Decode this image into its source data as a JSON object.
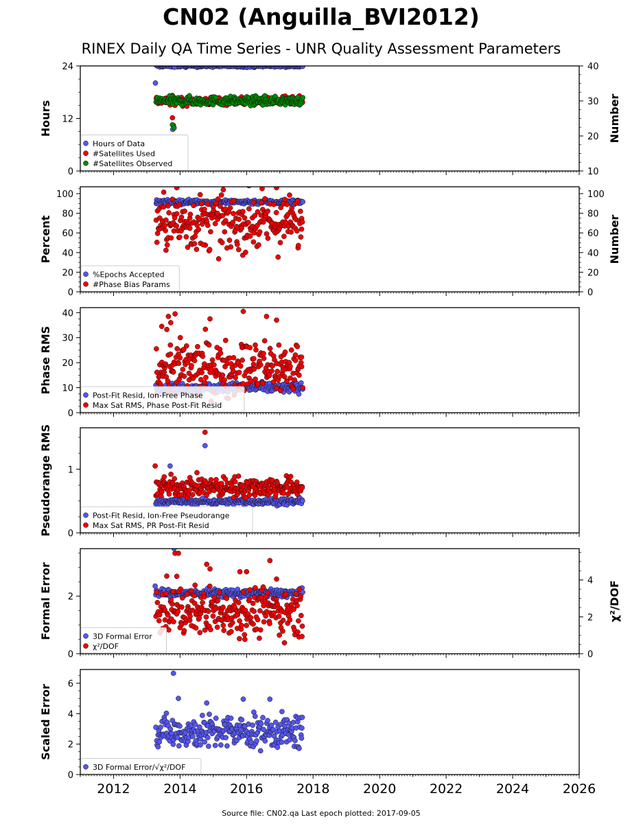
{
  "title": "CN02 (Anguilla_BVI2012)",
  "subtitle": "RINEX Daily QA Time Series - UNR Quality Assessment Parameters",
  "footer": "Source file: CN02.qa Last epoch plotted: 2017-09-05",
  "colors": {
    "blue": "#5555ee",
    "red": "#ee0000",
    "green": "#008800",
    "edge": "#111111"
  },
  "chart_data": {
    "type": "scatter",
    "xlim": [
      2011.0,
      2026.0
    ],
    "x_ticks": [
      2012,
      2014,
      2016,
      2018,
      2020,
      2022,
      2024,
      2026
    ],
    "x_tick_labels": [
      "2012",
      "2014",
      "2016",
      "2018",
      "2020",
      "2022",
      "2024",
      "2026"
    ],
    "panels": [
      {
        "ylabel": "Hours",
        "ylim": [
          0,
          24
        ],
        "yticks": [
          0,
          12,
          24
        ],
        "ytick_labels": [
          "0",
          "12",
          "24"
        ],
        "right_ylabel": "Number",
        "right_ylim": [
          10,
          40
        ],
        "right_yticks": [
          10,
          20,
          30,
          40
        ],
        "right_ytick_labels": [
          "10",
          "20",
          "30",
          "40"
        ],
        "series": [
          {
            "name": "Hours of Data",
            "color": "blue",
            "axis": "left",
            "x_range": [
              2013.28,
              2017.68
            ],
            "base": 24.0,
            "spread": 0.15,
            "outliers": [
              [
                2013.26,
                20.1
              ],
              [
                2013.78,
                9.5
              ],
              [
                2013.83,
                23.7
              ]
            ]
          },
          {
            "name": "#Satellites Used",
            "color": "red",
            "axis": "right",
            "x_range": [
              2013.28,
              2017.68
            ],
            "base": 30.0,
            "spread": 0.6,
            "outliers": [
              [
                2013.77,
                25.2
              ],
              [
                2013.8,
                23.0
              ]
            ]
          },
          {
            "name": "#Satellites Observed",
            "color": "green",
            "axis": "right",
            "x_range": [
              2013.28,
              2017.68
            ],
            "base": 30.0,
            "spread": 0.6,
            "outliers": [
              [
                2013.77,
                23.2
              ],
              [
                2013.82,
                22.3
              ]
            ]
          }
        ]
      },
      {
        "ylabel": "Percent",
        "ylim": [
          0,
          107
        ],
        "yticks": [
          0,
          20,
          40,
          60,
          80,
          100
        ],
        "ytick_labels": [
          "0",
          "20",
          "40",
          "60",
          "80",
          "100"
        ],
        "right_ylabel": "Number",
        "right_ylim": [
          0,
          107
        ],
        "right_yticks": [
          0,
          20,
          40,
          60,
          80,
          100
        ],
        "right_ytick_labels": [
          "0",
          "20",
          "40",
          "60",
          "80",
          "100"
        ],
        "series": [
          {
            "name": "%Epochs Accepted",
            "color": "blue",
            "axis": "left",
            "x_range": [
              2013.28,
              2017.68
            ],
            "base": 91.5,
            "spread": 1.2,
            "outliers": []
          },
          {
            "name": "#Phase Bias Params",
            "color": "red",
            "axis": "right",
            "x_range": [
              2013.28,
              2017.68
            ],
            "base": 70.0,
            "spread": 14.0,
            "outliers": [
              [
                2013.9,
                106
              ],
              [
                2015.3,
                104
              ],
              [
                2016.9,
                106
              ],
              [
                2014.7,
                48
              ]
            ]
          }
        ]
      },
      {
        "ylabel": "Phase RMS",
        "ylim": [
          0,
          42
        ],
        "yticks": [
          0,
          10,
          20,
          30,
          40
        ],
        "ytick_labels": [
          "0",
          "10",
          "20",
          "30",
          "40"
        ],
        "series": [
          {
            "name": "Post-Fit Resid, Ion-Free Phase",
            "color": "blue",
            "axis": "left",
            "x_range": [
              2013.28,
              2017.68
            ],
            "base": 10.0,
            "spread": 1.0,
            "outliers": []
          },
          {
            "name": "Max Sat RMS, Phase Post-Fit Resid",
            "color": "red",
            "axis": "left",
            "x_range": [
              2013.28,
              2017.68
            ],
            "base": 18.0,
            "spread": 5.5,
            "outliers": [
              [
                2013.65,
                38.5
              ],
              [
                2013.72,
                36.0
              ],
              [
                2013.85,
                39.5
              ],
              [
                2014.9,
                37.5
              ],
              [
                2015.9,
                40.5
              ],
              [
                2016.6,
                38.5
              ],
              [
                2016.9,
                37.0
              ],
              [
                2013.45,
                34.5
              ]
            ]
          }
        ]
      },
      {
        "ylabel": "Pseudorange RMS",
        "ylim": [
          0,
          1.65
        ],
        "yticks": [
          0,
          1
        ],
        "ytick_labels": [
          "0",
          "1"
        ],
        "series": [
          {
            "name": "Post-Fit Resid, Ion-Free Pseudorange",
            "color": "blue",
            "axis": "left",
            "x_range": [
              2013.28,
              2017.68
            ],
            "base": 0.49,
            "spread": 0.025,
            "outliers": [
              [
                2014.75,
                1.37
              ],
              [
                2013.7,
                1.05
              ]
            ]
          },
          {
            "name": "Max Sat RMS, PR Post-Fit Resid",
            "color": "red",
            "axis": "left",
            "x_range": [
              2013.28,
              2017.68
            ],
            "base": 0.72,
            "spread": 0.08,
            "outliers": [
              [
                2014.75,
                1.58
              ],
              [
                2013.25,
                1.05
              ]
            ]
          }
        ]
      },
      {
        "ylabel": "Formal Error",
        "ylim": [
          0,
          3.65
        ],
        "yticks": [
          0,
          2
        ],
        "ytick_labels": [
          "0",
          "2"
        ],
        "right_ylabel": "χ²/DOF",
        "right_ylim": [
          0,
          5.7
        ],
        "right_yticks": [
          0,
          2,
          4
        ],
        "right_ytick_labels": [
          "0",
          "2",
          "4"
        ],
        "series": [
          {
            "name": "3D Formal Error",
            "color": "blue",
            "axis": "left",
            "x_range": [
              2013.28,
              2017.68
            ],
            "base": 2.1,
            "spread": 0.07,
            "outliers": [
              [
                2013.25,
                2.35
              ],
              [
                2013.82,
                3.65
              ]
            ]
          },
          {
            "name": "χ²/DOF",
            "color": "red",
            "axis": "right",
            "x_range": [
              2013.28,
              2017.68
            ],
            "base": 2.3,
            "spread": 0.65,
            "outliers": [
              [
                2013.85,
                5.45
              ],
              [
                2013.95,
                5.45
              ],
              [
                2013.9,
                4.2
              ],
              [
                2014.8,
                4.85
              ],
              [
                2014.9,
                4.6
              ],
              [
                2015.8,
                4.45
              ],
              [
                2016.0,
                4.45
              ],
              [
                2016.7,
                5.05
              ],
              [
                2016.9,
                4.05
              ]
            ]
          }
        ]
      },
      {
        "ylabel": "Scaled Error",
        "ylim": [
          0,
          6.9
        ],
        "yticks": [
          0,
          2,
          4,
          6
        ],
        "ytick_labels": [
          "0",
          "2",
          "4",
          "6"
        ],
        "series": [
          {
            "name": "3D Formal Error/√χ²/DOF",
            "color": "blue",
            "axis": "left",
            "x_range": [
              2013.28,
              2017.68
            ],
            "base": 2.8,
            "spread": 0.55,
            "outliers": [
              [
                2013.8,
                6.65
              ],
              [
                2013.95,
                5.0
              ],
              [
                2014.8,
                4.7
              ],
              [
                2015.9,
                4.95
              ],
              [
                2016.7,
                4.95
              ]
            ]
          }
        ]
      }
    ]
  }
}
